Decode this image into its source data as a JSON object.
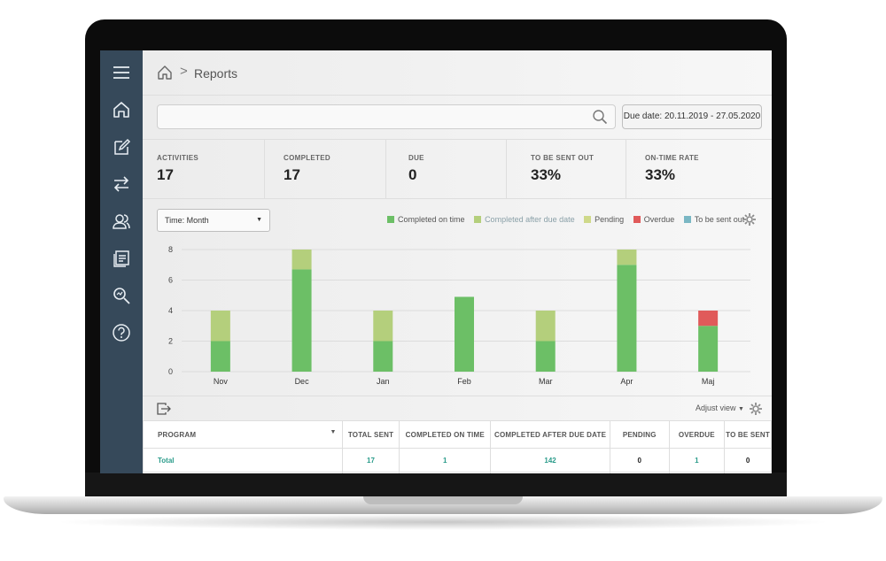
{
  "breadcrumb": {
    "current": "Reports",
    "separator": ">"
  },
  "search": {
    "placeholder": "",
    "value": ""
  },
  "date_filter": {
    "label": "Due date: 20.11.2019 - 27.05.2020"
  },
  "kpis": [
    {
      "label": "ACTIVITIES",
      "value": "17"
    },
    {
      "label": "COMPLETED",
      "value": "17"
    },
    {
      "label": "DUE",
      "value": "0"
    },
    {
      "label": "TO BE SENT OUT",
      "value": "33%"
    },
    {
      "label": "ON-TIME RATE",
      "value": "33%"
    }
  ],
  "time_select": {
    "value": "Time: Month"
  },
  "legend": [
    {
      "label": "Completed on time",
      "color": "#6cbf66"
    },
    {
      "label": "Completed after due date",
      "color": "#b4cf7c"
    },
    {
      "label": "Pending",
      "color": "#cfd98a"
    },
    {
      "label": "Overdue",
      "color": "#e05a5a"
    },
    {
      "label": "To be sent out",
      "color": "#7ab7c4"
    }
  ],
  "chart_data": {
    "type": "bar",
    "stacked": true,
    "categories": [
      "Nov",
      "Dec",
      "Jan",
      "Feb",
      "Mar",
      "Apr",
      "Maj"
    ],
    "ylim": [
      0,
      8
    ],
    "yticks": [
      0,
      2,
      4,
      6,
      8
    ],
    "series": [
      {
        "name": "Completed on time",
        "color": "#6cbf66",
        "values": [
          2,
          6.7,
          2,
          4.9,
          2,
          7,
          3
        ]
      },
      {
        "name": "Completed after due date",
        "color": "#b4cf7c",
        "values": [
          2,
          1.3,
          2,
          0,
          2,
          1,
          0
        ]
      },
      {
        "name": "Pending",
        "color": "#cfd98a",
        "values": [
          0,
          0,
          0,
          0,
          0,
          0,
          0
        ]
      },
      {
        "name": "Overdue",
        "color": "#e05a5a",
        "values": [
          0,
          0,
          0,
          0,
          0,
          0,
          1
        ]
      },
      {
        "name": "To be sent out",
        "color": "#7ab7c4",
        "values": [
          0,
          0,
          0,
          0,
          0,
          0,
          0
        ]
      }
    ],
    "grid": true
  },
  "table_tools": {
    "adjust_label": "Adjust view"
  },
  "table": {
    "columns": [
      "PROGRAM",
      "TOTAL SENT",
      "COMPLETED ON TIME",
      "COMPLETED AFTER DUE DATE",
      "PENDING",
      "OVERDUE",
      "TO BE SENT"
    ],
    "rows": [
      {
        "program": "Total",
        "total_sent": "17",
        "on_time": "1",
        "after_due": "142",
        "pending": "0",
        "overdue": "1",
        "to_be_sent": "0"
      }
    ]
  }
}
